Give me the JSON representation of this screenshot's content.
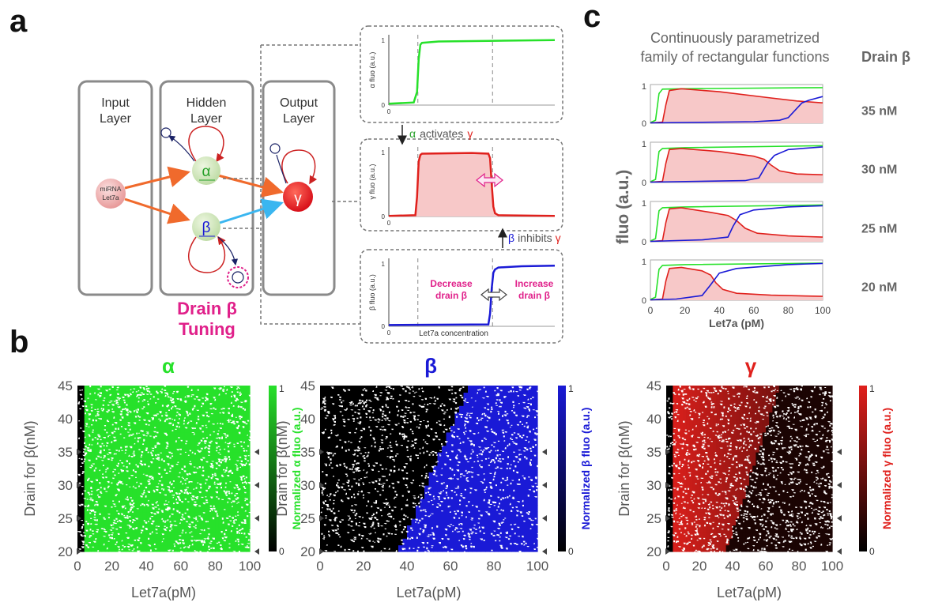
{
  "panel_labels": {
    "a": "a",
    "b": "b",
    "c": "c"
  },
  "network": {
    "input_layer": "Input\nLayer",
    "hidden_layer": "Hidden\nLayer",
    "output_layer": "Output\nLayer",
    "input_node_line1": "miRNA",
    "input_node_line2": "Let7a",
    "alpha": "α",
    "beta": "β",
    "gamma": "γ",
    "tuning_line1": "Drain β",
    "tuning_line2": "Tuning"
  },
  "annotations": {
    "alpha_activates_alpha": "α",
    "alpha_activates_text": "activates",
    "alpha_activates_gamma": "γ",
    "beta_inhibits_beta": "β",
    "beta_inhibits_text": "inhibits",
    "beta_inhibits_gamma": "γ",
    "decrease_drain": "Decrease\ndrain β",
    "increase_drain": "Increase\ndrain β",
    "let7a_concentration": "Let7a concentration"
  },
  "colors": {
    "green": "#27e12a",
    "red": "#e0201c",
    "blue": "#1a1ad6",
    "magenta": "#e0208a",
    "box_gray": "#8a8a8a",
    "pink_fill": "#f7c8c8",
    "orange_arrow": "#f06a2c",
    "cyan_arrow": "#3ab6f0"
  },
  "chart_data": [
    {
      "id": "a-alpha",
      "type": "line",
      "ylabel": "α fluo (a.u.)",
      "yticks": [
        "0",
        "1"
      ],
      "xticks": [
        "0"
      ],
      "series": [
        {
          "x": [
            0,
            15,
            17,
            18,
            19,
            20,
            30,
            60,
            100
          ],
          "y": [
            0.02,
            0.04,
            0.2,
            0.7,
            0.92,
            0.95,
            0.97,
            0.98,
            0.99
          ]
        }
      ]
    },
    {
      "id": "a-gamma",
      "type": "area",
      "ylabel": "γ fluo (a.u.)",
      "yticks": [
        "0",
        "1"
      ],
      "xticks": [
        "0"
      ],
      "series": [
        {
          "x": [
            0,
            16,
            17,
            18,
            19,
            20,
            50,
            60,
            61,
            62,
            63,
            64,
            66,
            100
          ],
          "y": [
            0.01,
            0.02,
            0.3,
            0.85,
            0.95,
            0.97,
            0.98,
            0.97,
            0.9,
            0.5,
            0.15,
            0.05,
            0.02,
            0.01
          ]
        }
      ]
    },
    {
      "id": "a-beta",
      "type": "line",
      "ylabel": "β fluo (a.u.)",
      "yticks": [
        "0",
        "1"
      ],
      "xticks": [
        "0"
      ],
      "xlabel": "Let7a concentration",
      "series": [
        {
          "x": [
            0,
            60,
            61,
            62,
            63,
            64,
            66,
            80,
            100
          ],
          "y": [
            0.02,
            0.03,
            0.2,
            0.6,
            0.85,
            0.9,
            0.93,
            0.95,
            0.96
          ]
        }
      ]
    }
  ],
  "panel_c": {
    "title_line1": "Continuously parametrized",
    "title_line2": "family of rectangular functions",
    "header": "Drain β",
    "ylabel": "fluo (a.u.)",
    "xlabel": "Let7a (pM)",
    "xticks": [
      "0",
      "20",
      "40",
      "60",
      "80",
      "100"
    ],
    "yticks": [
      "0",
      "1"
    ],
    "type": "line",
    "rows": [
      {
        "label": "35 nM",
        "green": [
          [
            0,
            0.02
          ],
          [
            3,
            0.08
          ],
          [
            5,
            0.8
          ],
          [
            7,
            0.92
          ],
          [
            20,
            0.93
          ],
          [
            100,
            0.96
          ]
        ],
        "red": [
          [
            0,
            0.01
          ],
          [
            7,
            0.03
          ],
          [
            9,
            0.5
          ],
          [
            11,
            0.88
          ],
          [
            18,
            0.93
          ],
          [
            40,
            0.85
          ],
          [
            70,
            0.68
          ],
          [
            85,
            0.6
          ],
          [
            100,
            0.55
          ]
        ],
        "blue": [
          [
            0,
            0.01
          ],
          [
            60,
            0.04
          ],
          [
            75,
            0.08
          ],
          [
            80,
            0.15
          ],
          [
            85,
            0.4
          ],
          [
            88,
            0.55
          ],
          [
            92,
            0.62
          ],
          [
            100,
            0.72
          ]
        ]
      },
      {
        "label": "30 nM",
        "green": [
          [
            0,
            0.02
          ],
          [
            3,
            0.08
          ],
          [
            5,
            0.8
          ],
          [
            7,
            0.88
          ],
          [
            20,
            0.9
          ],
          [
            100,
            0.95
          ]
        ],
        "red": [
          [
            0,
            0.01
          ],
          [
            7,
            0.03
          ],
          [
            9,
            0.5
          ],
          [
            11,
            0.85
          ],
          [
            18,
            0.88
          ],
          [
            40,
            0.8
          ],
          [
            60,
            0.68
          ],
          [
            66,
            0.6
          ],
          [
            70,
            0.45
          ],
          [
            75,
            0.3
          ],
          [
            85,
            0.22
          ],
          [
            100,
            0.2
          ]
        ],
        "blue": [
          [
            0,
            0.01
          ],
          [
            55,
            0.05
          ],
          [
            63,
            0.12
          ],
          [
            68,
            0.5
          ],
          [
            72,
            0.7
          ],
          [
            80,
            0.85
          ],
          [
            100,
            0.92
          ]
        ]
      },
      {
        "label": "25 nM",
        "green": [
          [
            0,
            0.02
          ],
          [
            3,
            0.08
          ],
          [
            5,
            0.8
          ],
          [
            7,
            0.88
          ],
          [
            20,
            0.9
          ],
          [
            100,
            0.95
          ]
        ],
        "red": [
          [
            0,
            0.01
          ],
          [
            7,
            0.03
          ],
          [
            9,
            0.5
          ],
          [
            11,
            0.85
          ],
          [
            18,
            0.88
          ],
          [
            35,
            0.76
          ],
          [
            45,
            0.68
          ],
          [
            50,
            0.55
          ],
          [
            55,
            0.35
          ],
          [
            62,
            0.22
          ],
          [
            80,
            0.15
          ],
          [
            100,
            0.12
          ]
        ],
        "blue": [
          [
            0,
            0.01
          ],
          [
            30,
            0.05
          ],
          [
            45,
            0.12
          ],
          [
            48,
            0.4
          ],
          [
            52,
            0.7
          ],
          [
            60,
            0.82
          ],
          [
            80,
            0.9
          ],
          [
            100,
            0.93
          ]
        ]
      },
      {
        "label": "20 nM",
        "green": [
          [
            0,
            0.02
          ],
          [
            3,
            0.08
          ],
          [
            5,
            0.8
          ],
          [
            7,
            0.9
          ],
          [
            20,
            0.92
          ],
          [
            100,
            0.96
          ]
        ],
        "red": [
          [
            0,
            0.01
          ],
          [
            7,
            0.03
          ],
          [
            9,
            0.5
          ],
          [
            11,
            0.82
          ],
          [
            18,
            0.85
          ],
          [
            30,
            0.76
          ],
          [
            35,
            0.65
          ],
          [
            38,
            0.45
          ],
          [
            42,
            0.28
          ],
          [
            50,
            0.18
          ],
          [
            70,
            0.13
          ],
          [
            100,
            0.1
          ]
        ],
        "blue": [
          [
            0,
            0.01
          ],
          [
            15,
            0.03
          ],
          [
            30,
            0.12
          ],
          [
            35,
            0.4
          ],
          [
            40,
            0.7
          ],
          [
            50,
            0.82
          ],
          [
            80,
            0.92
          ],
          [
            100,
            0.95
          ]
        ]
      }
    ]
  },
  "panel_b": [
    {
      "title": "α",
      "colorbar_label": "Normalized α fluo (a.u.)",
      "color": "#27e12a",
      "rule": "alpha"
    },
    {
      "title": "β",
      "colorbar_label": "Normalized β fluo (a.u.)",
      "color": "#1a1ad6",
      "rule": "beta"
    },
    {
      "title": "γ",
      "colorbar_label": "Normalized γ fluo (a.u.)",
      "color": "#e0201c",
      "rule": "gamma"
    }
  ],
  "panel_b_axes": {
    "xlabel": "Let7a(pM)",
    "ylabel": "Drain for β(nM)",
    "xticks": [
      "0",
      "20",
      "40",
      "60",
      "80",
      "100"
    ],
    "yticks": [
      "20",
      "25",
      "30",
      "35",
      "40",
      "45"
    ],
    "xlim": [
      0,
      100
    ],
    "ylim": [
      20,
      45
    ],
    "cbar_ticks": [
      "0",
      "1"
    ],
    "marked_drains": [
      20,
      25,
      30,
      35
    ]
  }
}
